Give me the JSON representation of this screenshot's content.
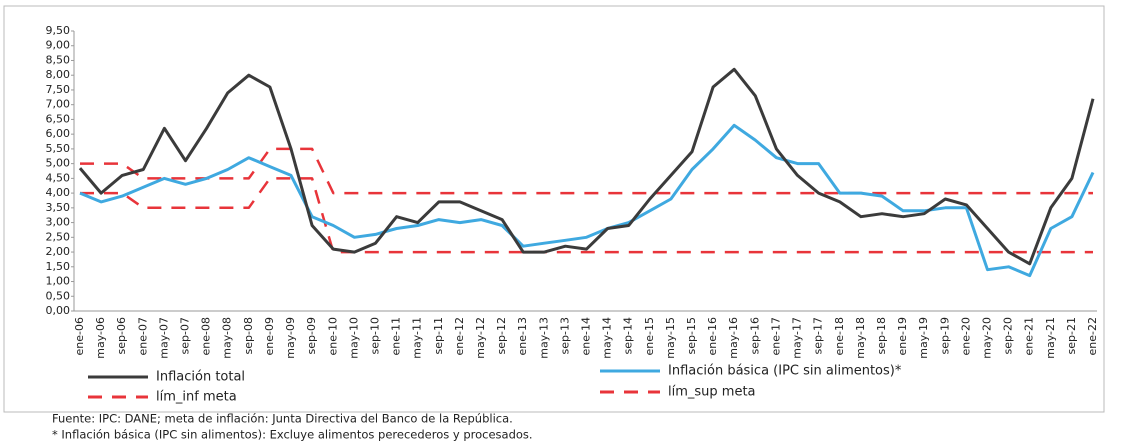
{
  "chart_data": {
    "type": "line",
    "categories": [
      "ene-06",
      "may-06",
      "sep-06",
      "ene-07",
      "may-07",
      "sep-07",
      "ene-08",
      "may-08",
      "sep-08",
      "ene-09",
      "may-09",
      "sep-09",
      "ene-10",
      "may-10",
      "sep-10",
      "ene-11",
      "may-11",
      "sep-11",
      "ene-12",
      "may-12",
      "sep-12",
      "ene-13",
      "may-13",
      "sep-13",
      "ene-14",
      "may-14",
      "sep-14",
      "ene-15",
      "may-15",
      "sep-15",
      "ene-16",
      "may-16",
      "sep-16",
      "ene-17",
      "may-17",
      "sep-17",
      "ene-18",
      "may-18",
      "sep-18",
      "ene-19",
      "may-19",
      "sep-19",
      "ene-20",
      "may-20",
      "sep-20",
      "ene-21",
      "may-21",
      "sep-21",
      "ene-22"
    ],
    "series": [
      {
        "name": "Inflación total",
        "color": "#3b3b3b",
        "dash": false,
        "values": [
          4.85,
          4.0,
          4.6,
          4.8,
          6.2,
          5.1,
          6.2,
          7.4,
          8.0,
          7.6,
          5.5,
          2.9,
          2.1,
          2.0,
          2.3,
          3.2,
          3.0,
          3.7,
          3.7,
          3.4,
          3.1,
          2.0,
          2.0,
          2.2,
          2.1,
          2.8,
          2.9,
          3.8,
          4.6,
          5.4,
          7.6,
          8.2,
          7.3,
          5.5,
          4.6,
          4.0,
          3.7,
          3.2,
          3.3,
          3.2,
          3.3,
          3.8,
          3.6,
          2.8,
          2.0,
          1.6,
          3.5,
          4.5,
          7.2
        ]
      },
      {
        "name": "Inflación básica (IPC sin alimentos)*",
        "color": "#3fa9e0",
        "dash": false,
        "values": [
          4.0,
          3.7,
          3.9,
          4.2,
          4.5,
          4.3,
          4.5,
          4.8,
          5.2,
          4.9,
          4.6,
          3.2,
          2.9,
          2.5,
          2.6,
          2.8,
          2.9,
          3.1,
          3.0,
          3.1,
          2.9,
          2.2,
          2.3,
          2.4,
          2.5,
          2.8,
          3.0,
          3.4,
          3.8,
          4.8,
          5.5,
          6.3,
          5.8,
          5.2,
          5.0,
          5.0,
          4.0,
          4.0,
          3.9,
          3.4,
          3.4,
          3.5,
          3.5,
          1.4,
          1.5,
          1.2,
          2.8,
          3.2,
          4.7
        ]
      },
      {
        "name": "lím_inf meta",
        "color": "#e8343a",
        "dash": true,
        "values": [
          4,
          4,
          4,
          3.5,
          3.5,
          3.5,
          3.5,
          3.5,
          3.5,
          4.5,
          4.5,
          4.5,
          2,
          2,
          2,
          2,
          2,
          2,
          2,
          2,
          2,
          2,
          2,
          2,
          2,
          2,
          2,
          2,
          2,
          2,
          2,
          2,
          2,
          2,
          2,
          2,
          2,
          2,
          2,
          2,
          2,
          2,
          2,
          2,
          2,
          2,
          2,
          2,
          2
        ]
      },
      {
        "name": "lím_sup meta",
        "color": "#e8343a",
        "dash": true,
        "values": [
          5,
          5,
          5,
          4.5,
          4.5,
          4.5,
          4.5,
          4.5,
          4.5,
          5.5,
          5.5,
          5.5,
          4,
          4,
          4,
          4,
          4,
          4,
          4,
          4,
          4,
          4,
          4,
          4,
          4,
          4,
          4,
          4,
          4,
          4,
          4,
          4,
          4,
          4,
          4,
          4,
          4,
          4,
          4,
          4,
          4,
          4,
          4,
          4,
          4,
          4,
          4,
          4,
          4
        ]
      }
    ],
    "ylim": [
      0,
      9.5
    ],
    "yticks": [
      {
        "value": 0,
        "label": "0,00"
      },
      {
        "value": 0.5,
        "label": "0,50"
      },
      {
        "value": 1,
        "label": "1,00"
      },
      {
        "value": 1.5,
        "label": "1,50"
      },
      {
        "value": 2,
        "label": "2,00"
      },
      {
        "value": 2.5,
        "label": "2,50"
      },
      {
        "value": 3,
        "label": "3,00"
      },
      {
        "value": 3.5,
        "label": "3,50"
      },
      {
        "value": 4,
        "label": "4,00"
      },
      {
        "value": 4.5,
        "label": "4,50"
      },
      {
        "value": 5,
        "label": "5,00"
      },
      {
        "value": 5.5,
        "label": "5,50"
      },
      {
        "value": 6,
        "label": "6,00"
      },
      {
        "value": 6.5,
        "label": "6,50"
      },
      {
        "value": 7,
        "label": "7,00"
      },
      {
        "value": 7.5,
        "label": "7,50"
      },
      {
        "value": 8,
        "label": "8,00"
      },
      {
        "value": 8.5,
        "label": "8,50"
      },
      {
        "value": 9,
        "label": "9,00"
      },
      {
        "value": 9.5,
        "label": "9,50"
      }
    ],
    "grid": false,
    "notes": [
      "Fuente: IPC: DANE; meta de inflación: Junta Directiva del Banco de la República.",
      "* Inflación básica (IPC sin alimentos): Excluye alimentos perecederos y procesados."
    ]
  }
}
